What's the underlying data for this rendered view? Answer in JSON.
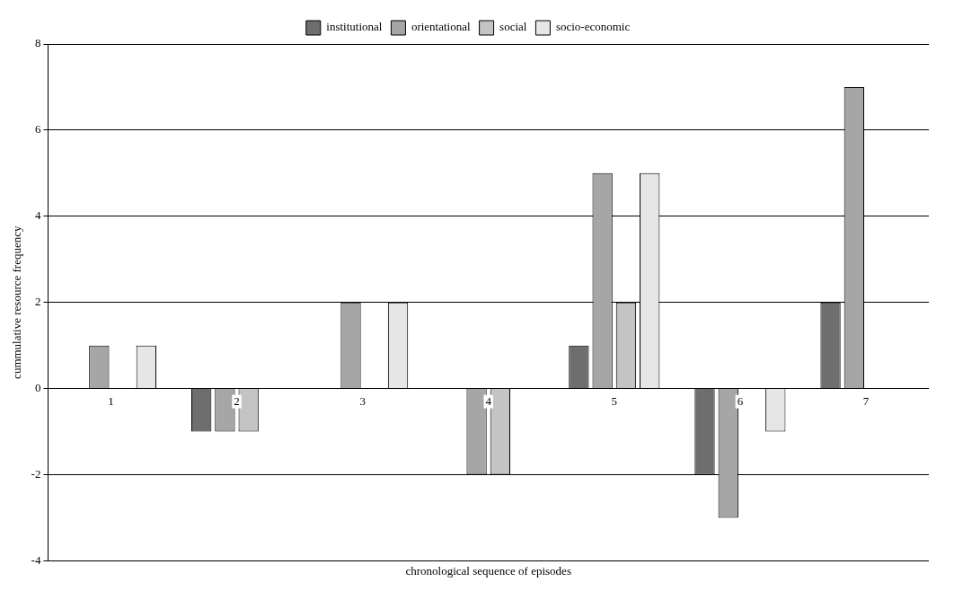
{
  "chart_data": {
    "type": "bar",
    "xlabel": "chronological sequence of episodes",
    "ylabel": "cummulative resource frequency",
    "categories": [
      "1",
      "2",
      "3",
      "4",
      "5",
      "6",
      "7"
    ],
    "series": [
      {
        "name": "institutional",
        "color": "#6e6e6e",
        "values": [
          0,
          -1,
          0,
          0,
          1,
          -2,
          2
        ]
      },
      {
        "name": "orientational",
        "color": "#a6a6a6",
        "values": [
          1,
          -1,
          2,
          -2,
          5,
          -3,
          7
        ]
      },
      {
        "name": "social",
        "color": "#c4c4c4",
        "values": [
          0,
          -1,
          0,
          -2,
          2,
          0,
          0
        ]
      },
      {
        "name": "socio-economic",
        "color": "#e6e6e6",
        "values": [
          1,
          0,
          2,
          0,
          5,
          -1,
          0
        ]
      }
    ],
    "ylim": [
      -4,
      8
    ],
    "yticks": [
      -4,
      -2,
      0,
      2,
      4,
      6,
      8
    ],
    "grid": "y",
    "legend": "top"
  }
}
